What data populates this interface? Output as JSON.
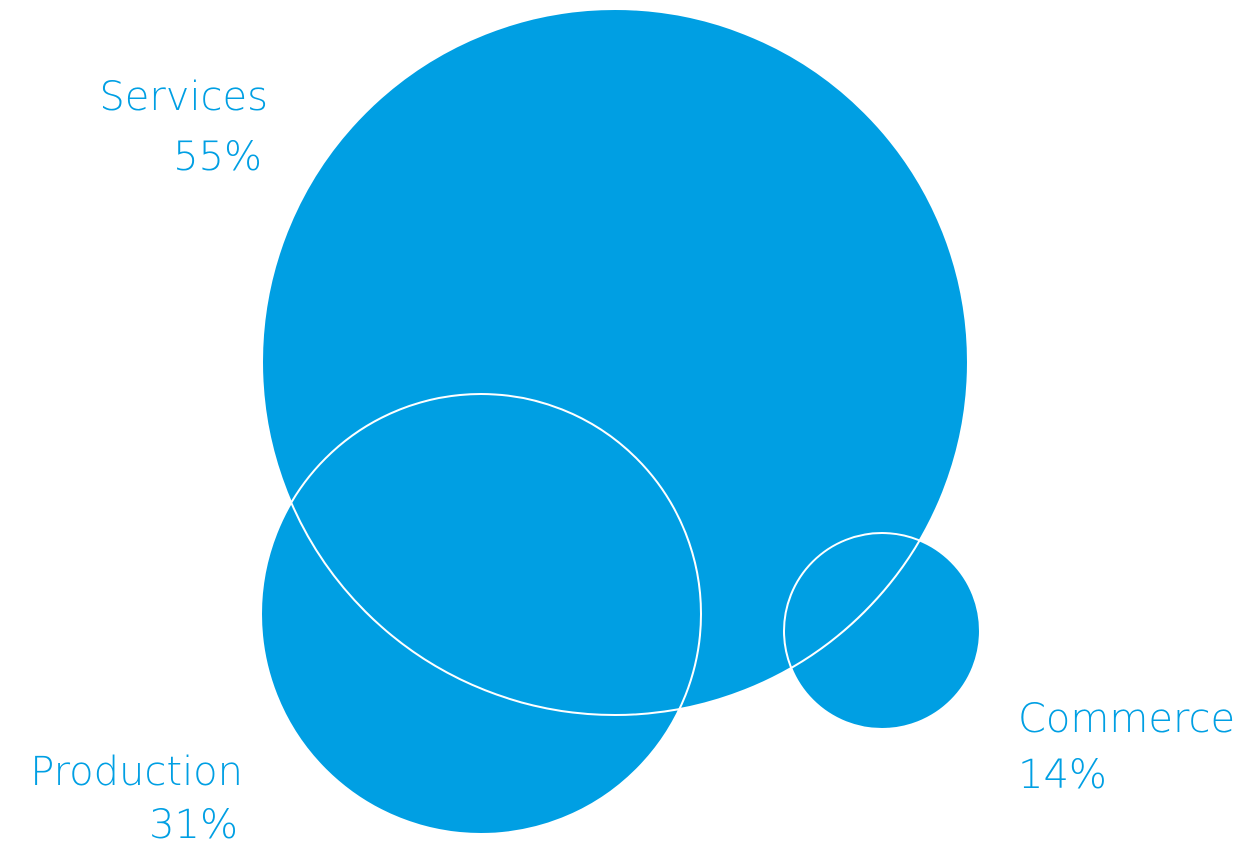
{
  "chart_data": {
    "type": "bubble",
    "title": "",
    "series": [
      {
        "name": "Services",
        "value": 55,
        "value_label": "55%"
      },
      {
        "name": "Production",
        "value": 31,
        "value_label": "31%"
      },
      {
        "name": "Commerce",
        "value": 14,
        "value_label": "14%"
      }
    ],
    "grid": false,
    "legend": "none"
  },
  "colors": {
    "bubble_fill": "#009fe3",
    "outline": "#ffffff",
    "label_text": "#009fe3",
    "background": "#ffffff"
  }
}
